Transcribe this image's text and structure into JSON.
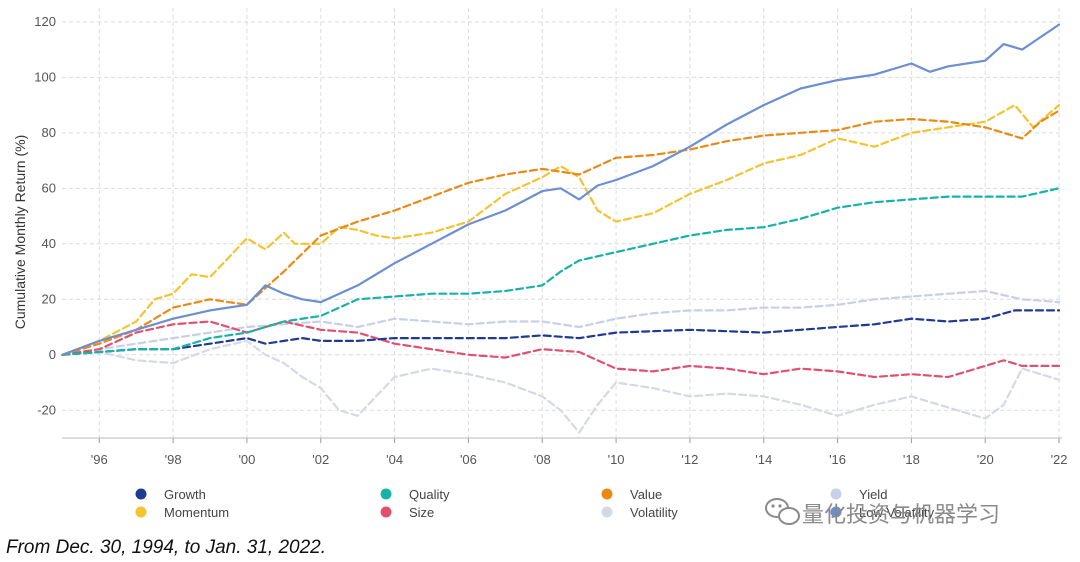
{
  "chart_data": {
    "type": "line",
    "title": "",
    "xlabel": "",
    "ylabel": "Cumulative Monthly Return (%)",
    "xlim": [
      1994.99,
      2022.08
    ],
    "ylim": [
      -30,
      125
    ],
    "yticks": [
      -20,
      0,
      20,
      40,
      60,
      80,
      100,
      120
    ],
    "xticks": [
      {
        "x": 1996,
        "label": "'96"
      },
      {
        "x": 1998,
        "label": "'98"
      },
      {
        "x": 2000,
        "label": "'00"
      },
      {
        "x": 2002,
        "label": "'02"
      },
      {
        "x": 2004,
        "label": "'04"
      },
      {
        "x": 2006,
        "label": "'06"
      },
      {
        "x": 2008,
        "label": "'08"
      },
      {
        "x": 2010,
        "label": "'10"
      },
      {
        "x": 2012,
        "label": "'12"
      },
      {
        "x": 2014,
        "label": "'14"
      },
      {
        "x": 2016,
        "label": "'16"
      },
      {
        "x": 2018,
        "label": "'18"
      },
      {
        "x": 2020,
        "label": "'20"
      },
      {
        "x": 2022,
        "label": "'22"
      }
    ],
    "grid": true,
    "legend_position": "bottom",
    "series": [
      {
        "name": "Growth",
        "color": "#1f3a93",
        "dash": true,
        "points": [
          [
            1995,
            0
          ],
          [
            1996,
            1
          ],
          [
            1997,
            2
          ],
          [
            1998,
            2
          ],
          [
            1999,
            4
          ],
          [
            2000,
            6
          ],
          [
            2000.5,
            4
          ],
          [
            2001,
            5
          ],
          [
            2001.5,
            6
          ],
          [
            2002,
            5
          ],
          [
            2003,
            5
          ],
          [
            2004,
            6
          ],
          [
            2006,
            6
          ],
          [
            2007,
            6
          ],
          [
            2008,
            7
          ],
          [
            2009,
            6
          ],
          [
            2010,
            8
          ],
          [
            2012,
            9
          ],
          [
            2014,
            8
          ],
          [
            2015,
            9
          ],
          [
            2016,
            10
          ],
          [
            2017,
            11
          ],
          [
            2018,
            13
          ],
          [
            2019,
            12
          ],
          [
            2020,
            13
          ],
          [
            2020.8,
            16
          ],
          [
            2021.5,
            16
          ],
          [
            2022,
            16
          ]
        ]
      },
      {
        "name": "Momentum",
        "color": "#f4c430",
        "dash": true,
        "points": [
          [
            1995,
            0
          ],
          [
            1996,
            5
          ],
          [
            1997,
            12
          ],
          [
            1997.5,
            20
          ],
          [
            1998,
            22
          ],
          [
            1998.5,
            29
          ],
          [
            1999,
            28
          ],
          [
            1999.5,
            35
          ],
          [
            2000,
            42
          ],
          [
            2000.5,
            38
          ],
          [
            2001,
            44
          ],
          [
            2001.3,
            40
          ],
          [
            2002,
            40
          ],
          [
            2002.5,
            46
          ],
          [
            2003,
            45
          ],
          [
            2003.5,
            43
          ],
          [
            2004,
            42
          ],
          [
            2005,
            44
          ],
          [
            2006,
            48
          ],
          [
            2007,
            58
          ],
          [
            2008,
            64
          ],
          [
            2008.5,
            68
          ],
          [
            2009,
            64
          ],
          [
            2009.5,
            52
          ],
          [
            2010,
            48
          ],
          [
            2011,
            51
          ],
          [
            2012,
            58
          ],
          [
            2013,
            63
          ],
          [
            2014,
            69
          ],
          [
            2015,
            72
          ],
          [
            2016,
            78
          ],
          [
            2017,
            75
          ],
          [
            2018,
            80
          ],
          [
            2019,
            82
          ],
          [
            2020,
            84
          ],
          [
            2020.8,
            90
          ],
          [
            2021.3,
            82
          ],
          [
            2022,
            90
          ]
        ]
      },
      {
        "name": "Quality",
        "color": "#17b3a9",
        "dash": true,
        "points": [
          [
            1995,
            0
          ],
          [
            1996,
            1
          ],
          [
            1997,
            2
          ],
          [
            1998,
            2
          ],
          [
            1999,
            6
          ],
          [
            2000,
            8
          ],
          [
            2001,
            12
          ],
          [
            2002,
            14
          ],
          [
            2003,
            20
          ],
          [
            2004,
            21
          ],
          [
            2005,
            22
          ],
          [
            2006,
            22
          ],
          [
            2007,
            23
          ],
          [
            2008,
            25
          ],
          [
            2008.5,
            30
          ],
          [
            2009,
            34
          ],
          [
            2010,
            37
          ],
          [
            2011,
            40
          ],
          [
            2012,
            43
          ],
          [
            2013,
            45
          ],
          [
            2014,
            46
          ],
          [
            2015,
            49
          ],
          [
            2016,
            53
          ],
          [
            2017,
            55
          ],
          [
            2018,
            56
          ],
          [
            2019,
            57
          ],
          [
            2020,
            57
          ],
          [
            2021,
            57
          ],
          [
            2022,
            60
          ]
        ]
      },
      {
        "name": "Size",
        "color": "#e05070",
        "dash": true,
        "points": [
          [
            1995,
            0
          ],
          [
            1996,
            2
          ],
          [
            1997,
            8
          ],
          [
            1998,
            11
          ],
          [
            1999,
            12
          ],
          [
            2000,
            8
          ],
          [
            2001,
            12
          ],
          [
            2002,
            9
          ],
          [
            2003,
            8
          ],
          [
            2004,
            4
          ],
          [
            2005,
            2
          ],
          [
            2006,
            0
          ],
          [
            2007,
            -1
          ],
          [
            2008,
            2
          ],
          [
            2009,
            1
          ],
          [
            2010,
            -5
          ],
          [
            2011,
            -6
          ],
          [
            2012,
            -4
          ],
          [
            2013,
            -5
          ],
          [
            2014,
            -7
          ],
          [
            2015,
            -5
          ],
          [
            2016,
            -6
          ],
          [
            2017,
            -8
          ],
          [
            2018,
            -7
          ],
          [
            2019,
            -8
          ],
          [
            2020,
            -4
          ],
          [
            2020.5,
            -2
          ],
          [
            2021,
            -4
          ],
          [
            2022,
            -4
          ]
        ]
      },
      {
        "name": "Value",
        "color": "#e98a15",
        "dash": true,
        "points": [
          [
            1995,
            0
          ],
          [
            1996,
            4
          ],
          [
            1997,
            9
          ],
          [
            1998,
            17
          ],
          [
            1999,
            20
          ],
          [
            2000,
            18
          ],
          [
            2001,
            30
          ],
          [
            2002,
            43
          ],
          [
            2003,
            48
          ],
          [
            2004,
            52
          ],
          [
            2005,
            57
          ],
          [
            2006,
            62
          ],
          [
            2007,
            65
          ],
          [
            2008,
            67
          ],
          [
            2009,
            65
          ],
          [
            2010,
            71
          ],
          [
            2011,
            72
          ],
          [
            2012,
            74
          ],
          [
            2013,
            77
          ],
          [
            2014,
            79
          ],
          [
            2015,
            80
          ],
          [
            2016,
            81
          ],
          [
            2017,
            84
          ],
          [
            2018,
            85
          ],
          [
            2019,
            84
          ],
          [
            2020,
            82
          ],
          [
            2021,
            78
          ],
          [
            2021.5,
            84
          ],
          [
            2022,
            88
          ]
        ]
      },
      {
        "name": "Volatility",
        "color": "#d5d9e4",
        "dash": true,
        "points": [
          [
            1995,
            0
          ],
          [
            1996,
            1
          ],
          [
            1997,
            -2
          ],
          [
            1998,
            -3
          ],
          [
            1999,
            2
          ],
          [
            2000,
            5
          ],
          [
            2000.5,
            0
          ],
          [
            2001,
            -3
          ],
          [
            2001.5,
            -8
          ],
          [
            2002,
            -12
          ],
          [
            2002.5,
            -20
          ],
          [
            2003,
            -22
          ],
          [
            2003.5,
            -15
          ],
          [
            2004,
            -8
          ],
          [
            2005,
            -5
          ],
          [
            2006,
            -7
          ],
          [
            2007,
            -10
          ],
          [
            2008,
            -15
          ],
          [
            2008.5,
            -20
          ],
          [
            2009,
            -28
          ],
          [
            2009.5,
            -18
          ],
          [
            2010,
            -10
          ],
          [
            2011,
            -12
          ],
          [
            2012,
            -15
          ],
          [
            2013,
            -14
          ],
          [
            2014,
            -15
          ],
          [
            2015,
            -18
          ],
          [
            2016,
            -22
          ],
          [
            2017,
            -18
          ],
          [
            2018,
            -15
          ],
          [
            2019,
            -19
          ],
          [
            2020,
            -23
          ],
          [
            2020.5,
            -18
          ],
          [
            2021,
            -5
          ],
          [
            2022,
            -9
          ]
        ]
      },
      {
        "name": "Yield",
        "color": "#c7d0e6",
        "dash": true,
        "points": [
          [
            1995,
            0
          ],
          [
            1996,
            2
          ],
          [
            1997,
            4
          ],
          [
            1998,
            6
          ],
          [
            1999,
            8
          ],
          [
            2000,
            10
          ],
          [
            2001,
            11
          ],
          [
            2002,
            12
          ],
          [
            2003,
            10
          ],
          [
            2004,
            13
          ],
          [
            2005,
            12
          ],
          [
            2006,
            11
          ],
          [
            2007,
            12
          ],
          [
            2008,
            12
          ],
          [
            2009,
            10
          ],
          [
            2010,
            13
          ],
          [
            2011,
            15
          ],
          [
            2012,
            16
          ],
          [
            2013,
            16
          ],
          [
            2014,
            17
          ],
          [
            2015,
            17
          ],
          [
            2016,
            18
          ],
          [
            2017,
            20
          ],
          [
            2018,
            21
          ],
          [
            2019,
            22
          ],
          [
            2020,
            23
          ],
          [
            2021,
            20
          ],
          [
            2022,
            19
          ]
        ]
      },
      {
        "name": "Low Volatility",
        "color": "#6b8fd0",
        "dash": false,
        "points": [
          [
            1995,
            0
          ],
          [
            1996,
            5
          ],
          [
            1997,
            9
          ],
          [
            1998,
            13
          ],
          [
            1999,
            16
          ],
          [
            2000,
            18
          ],
          [
            2000.5,
            25
          ],
          [
            2001,
            22
          ],
          [
            2001.5,
            20
          ],
          [
            2002,
            19
          ],
          [
            2003,
            25
          ],
          [
            2004,
            33
          ],
          [
            2005,
            40
          ],
          [
            2006,
            47
          ],
          [
            2007,
            52
          ],
          [
            2008,
            59
          ],
          [
            2008.5,
            60
          ],
          [
            2009,
            56
          ],
          [
            2009.5,
            61
          ],
          [
            2010,
            63
          ],
          [
            2011,
            68
          ],
          [
            2012,
            75
          ],
          [
            2013,
            83
          ],
          [
            2014,
            90
          ],
          [
            2015,
            96
          ],
          [
            2016,
            99
          ],
          [
            2017,
            101
          ],
          [
            2018,
            105
          ],
          [
            2018.5,
            102
          ],
          [
            2019,
            104
          ],
          [
            2020,
            106
          ],
          [
            2020.5,
            112
          ],
          [
            2021,
            110
          ],
          [
            2022,
            119
          ]
        ]
      }
    ]
  },
  "legend": [
    {
      "label": "Growth",
      "color": "#1f3a93"
    },
    {
      "label": "Momentum",
      "color": "#f4c430"
    },
    {
      "label": "Quality",
      "color": "#17b3a9"
    },
    {
      "label": "Size",
      "color": "#e05070"
    },
    {
      "label": "Value",
      "color": "#e98a15"
    },
    {
      "label": "Volatility",
      "color": "#d5d9e4"
    },
    {
      "label": "Yield",
      "color": "#c7d0e6"
    },
    {
      "label": "Low Volatility",
      "color": "#6b8fd0"
    }
  ],
  "watermark": "量化投资与机器学习",
  "footnote": "From Dec. 30, 1994, to Jan. 31, 2022."
}
